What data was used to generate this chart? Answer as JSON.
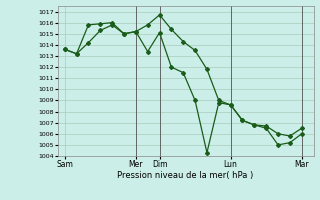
{
  "xlabel": "Pression niveau de la mer( hPa )",
  "bg_color": "#cceee8",
  "grid_color": "#aaccbb",
  "line_color": "#1a5c1a",
  "markersize": 2.0,
  "linewidth": 0.9,
  "ylim": [
    1004,
    1017.5
  ],
  "yticks": [
    1004,
    1005,
    1006,
    1007,
    1008,
    1009,
    1010,
    1011,
    1012,
    1013,
    1014,
    1015,
    1016,
    1017
  ],
  "xtick_labels": [
    "Sam",
    "Mer",
    "Dim",
    "Lun",
    "Mar"
  ],
  "xtick_positions": [
    0,
    30,
    40,
    70,
    100
  ],
  "vline_positions": [
    30,
    40,
    70,
    100
  ],
  "line1_x": [
    0,
    5,
    10,
    15,
    20,
    25,
    30,
    35,
    40,
    45,
    50,
    55,
    60,
    65,
    70,
    75,
    80,
    85,
    90,
    95,
    100
  ],
  "line1_y": [
    1013.6,
    1013.2,
    1015.8,
    1015.9,
    1016.0,
    1015.0,
    1015.2,
    1015.8,
    1016.7,
    1015.4,
    1014.3,
    1013.5,
    1011.8,
    1009.0,
    1008.6,
    1007.2,
    1006.8,
    1006.7,
    1006.0,
    1005.8,
    1006.5
  ],
  "line2_x": [
    0,
    5,
    10,
    15,
    20,
    25,
    30,
    35,
    40,
    45,
    50,
    55,
    60,
    65,
    70,
    75,
    80,
    85,
    90,
    95,
    100
  ],
  "line2_y": [
    1013.6,
    1013.2,
    1014.2,
    1015.3,
    1015.8,
    1015.0,
    1015.2,
    1013.4,
    1015.1,
    1012.0,
    1011.5,
    1009.0,
    1004.3,
    1008.8,
    1008.6,
    1007.2,
    1006.8,
    1006.5,
    1005.0,
    1005.2,
    1006.0
  ]
}
